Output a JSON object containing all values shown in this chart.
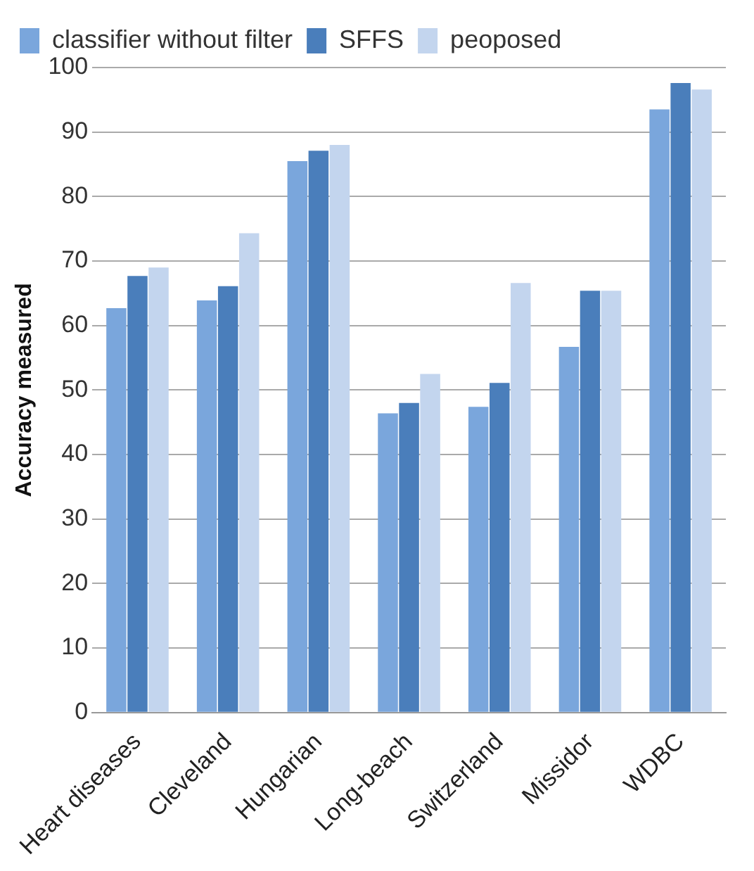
{
  "chart_data": {
    "type": "bar",
    "ylabel": "Accuracy measured",
    "categories": [
      "Heart diseases",
      "Cleveland",
      "Hungarian",
      "Long-beach",
      "Switzerland",
      "Missidor",
      "WDBC"
    ],
    "series": [
      {
        "name": "classifier without filter",
        "color": "#7aa6dc",
        "values": [
          62.7,
          63.9,
          85.5,
          46.4,
          47.4,
          56.7,
          93.5
        ]
      },
      {
        "name": "SFFS",
        "color": "#4a7ebb",
        "values": [
          67.7,
          66.1,
          87.1,
          48,
          51.1,
          65.4,
          97.6
        ]
      },
      {
        "name": "peoposed",
        "color": "#c3d5ee",
        "values": [
          69,
          74.3,
          88,
          52.5,
          66.6,
          65.4,
          96.6
        ]
      }
    ],
    "ylim": [
      0,
      100
    ],
    "yticks": [
      0,
      10,
      20,
      30,
      40,
      50,
      60,
      70,
      80,
      90,
      100
    ],
    "grid": "y",
    "legend": "top"
  }
}
